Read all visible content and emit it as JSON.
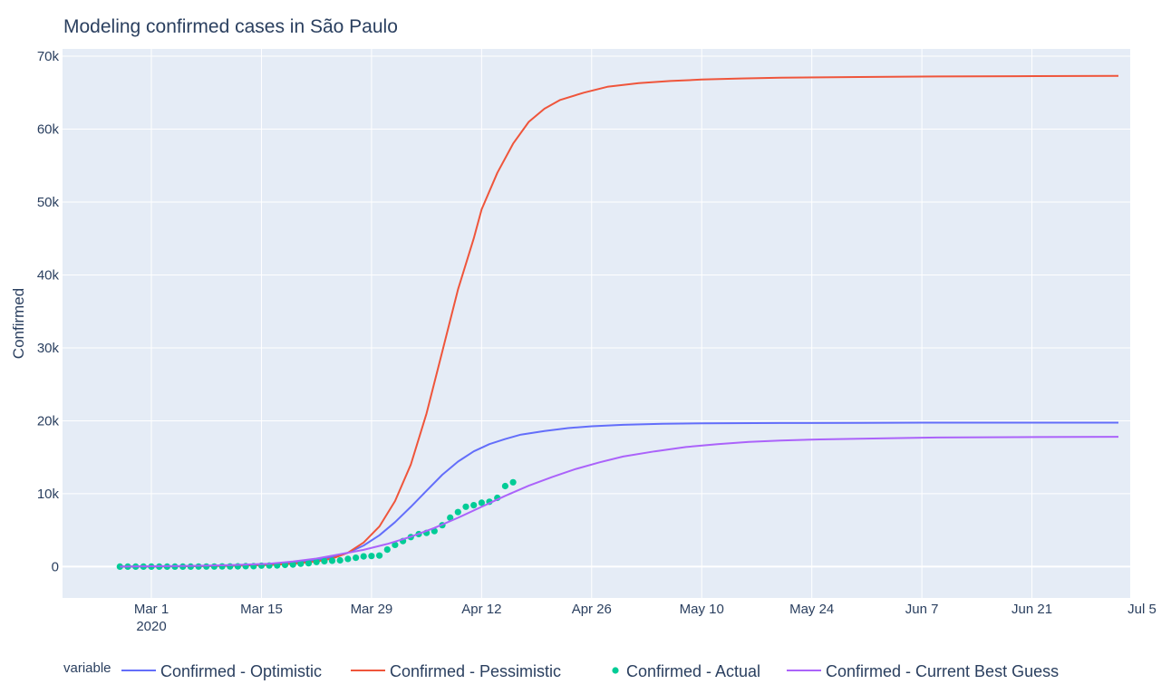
{
  "chart_data": {
    "type": "line",
    "title": "Modeling confirmed cases in São Paulo",
    "xlabel": "",
    "ylabel": "Confirmed",
    "x_start_day": 0,
    "x_end_day": 123,
    "xlim": [
      -11.3,
      124.5
    ],
    "ylim": [
      -4300,
      71000
    ],
    "y_ticks": [
      {
        "value": 0,
        "label": "0"
      },
      {
        "value": 10000,
        "label": "10k"
      },
      {
        "value": 20000,
        "label": "20k"
      },
      {
        "value": 30000,
        "label": "30k"
      },
      {
        "value": 40000,
        "label": "40k"
      },
      {
        "value": 50000,
        "label": "50k"
      },
      {
        "value": 60000,
        "label": "60k"
      },
      {
        "value": 70000,
        "label": "70k"
      }
    ],
    "x_ticks": [
      {
        "day": 0,
        "label": "Mar 1",
        "sublabel": "2020"
      },
      {
        "day": 14,
        "label": "Mar 15"
      },
      {
        "day": 28,
        "label": "Mar 29"
      },
      {
        "day": 42,
        "label": "Apr 12"
      },
      {
        "day": 56,
        "label": "Apr 26"
      },
      {
        "day": 70,
        "label": "May 10"
      },
      {
        "day": 84,
        "label": "May 24"
      },
      {
        "day": 98,
        "label": "Jun 7"
      },
      {
        "day": 112,
        "label": "Jun 21"
      },
      {
        "day": 126,
        "label": "Jul 5"
      }
    ],
    "series": [
      {
        "name": "Confirmed - Optimistic",
        "mode": "line",
        "color": "#636efa",
        "points": [
          [
            -4,
            0
          ],
          [
            0,
            30
          ],
          [
            5,
            60
          ],
          [
            10,
            120
          ],
          [
            15,
            300
          ],
          [
            18,
            550
          ],
          [
            21,
            900
          ],
          [
            23,
            1300
          ],
          [
            25,
            1900
          ],
          [
            27,
            2900
          ],
          [
            29,
            4300
          ],
          [
            31,
            6100
          ],
          [
            33,
            8200
          ],
          [
            35,
            10400
          ],
          [
            37,
            12600
          ],
          [
            39,
            14400
          ],
          [
            41,
            15800
          ],
          [
            43,
            16800
          ],
          [
            45,
            17500
          ],
          [
            47,
            18100
          ],
          [
            50,
            18600
          ],
          [
            53,
            19000
          ],
          [
            56,
            19250
          ],
          [
            60,
            19450
          ],
          [
            65,
            19600
          ],
          [
            70,
            19650
          ],
          [
            80,
            19700
          ],
          [
            90,
            19720
          ],
          [
            100,
            19740
          ],
          [
            110,
            19750
          ],
          [
            123,
            19750
          ]
        ]
      },
      {
        "name": "Confirmed - Pessimistic",
        "mode": "line",
        "color": "#ef553b",
        "points": [
          [
            -4,
            0
          ],
          [
            0,
            20
          ],
          [
            5,
            50
          ],
          [
            10,
            100
          ],
          [
            15,
            220
          ],
          [
            18,
            400
          ],
          [
            21,
            700
          ],
          [
            23,
            1100
          ],
          [
            25,
            1900
          ],
          [
            27,
            3300
          ],
          [
            29,
            5500
          ],
          [
            31,
            9000
          ],
          [
            33,
            14000
          ],
          [
            35,
            21000
          ],
          [
            37,
            29500
          ],
          [
            39,
            38000
          ],
          [
            41,
            45000
          ],
          [
            42,
            49000
          ],
          [
            44,
            54000
          ],
          [
            46,
            58000
          ],
          [
            48,
            61000
          ],
          [
            50,
            62800
          ],
          [
            52,
            64000
          ],
          [
            55,
            65000
          ],
          [
            58,
            65800
          ],
          [
            62,
            66300
          ],
          [
            66,
            66600
          ],
          [
            70,
            66800
          ],
          [
            75,
            66950
          ],
          [
            80,
            67050
          ],
          [
            90,
            67150
          ],
          [
            100,
            67220
          ],
          [
            110,
            67260
          ],
          [
            123,
            67300
          ]
        ]
      },
      {
        "name": "Confirmed - Actual",
        "mode": "markers",
        "color": "#00cc96",
        "points": [
          [
            -4,
            1
          ],
          [
            -3,
            1
          ],
          [
            -2,
            1
          ],
          [
            -1,
            2
          ],
          [
            0,
            2
          ],
          [
            1,
            2
          ],
          [
            2,
            2
          ],
          [
            3,
            2
          ],
          [
            4,
            3
          ],
          [
            5,
            3
          ],
          [
            6,
            6
          ],
          [
            7,
            10
          ],
          [
            8,
            16
          ],
          [
            9,
            19
          ],
          [
            10,
            30
          ],
          [
            11,
            42
          ],
          [
            12,
            56
          ],
          [
            13,
            65
          ],
          [
            14,
            136
          ],
          [
            15,
            152
          ],
          [
            16,
            164
          ],
          [
            17,
            240
          ],
          [
            18,
            286
          ],
          [
            19,
            396
          ],
          [
            20,
            459
          ],
          [
            21,
            631
          ],
          [
            22,
            745
          ],
          [
            23,
            810
          ],
          [
            24,
            862
          ],
          [
            25,
            1052
          ],
          [
            26,
            1223
          ],
          [
            27,
            1406
          ],
          [
            28,
            1451
          ],
          [
            29,
            1517
          ],
          [
            30,
            2339
          ],
          [
            31,
            2981
          ],
          [
            32,
            3506
          ],
          [
            33,
            4048
          ],
          [
            34,
            4466
          ],
          [
            35,
            4620
          ],
          [
            36,
            4866
          ],
          [
            37,
            5682
          ],
          [
            38,
            6708
          ],
          [
            39,
            7480
          ],
          [
            40,
            8216
          ],
          [
            41,
            8419
          ],
          [
            42,
            8755
          ],
          [
            43,
            8895
          ],
          [
            44,
            9428
          ],
          [
            45,
            11043
          ],
          [
            46,
            11568
          ]
        ]
      },
      {
        "name": "Confirmed - Current Best Guess",
        "mode": "line",
        "color": "#ab63fa",
        "points": [
          [
            -4,
            0
          ],
          [
            0,
            50
          ],
          [
            5,
            100
          ],
          [
            10,
            200
          ],
          [
            15,
            400
          ],
          [
            18,
            700
          ],
          [
            21,
            1100
          ],
          [
            24,
            1700
          ],
          [
            27,
            2300
          ],
          [
            30,
            3100
          ],
          [
            33,
            4100
          ],
          [
            36,
            5300
          ],
          [
            39,
            6700
          ],
          [
            42,
            8200
          ],
          [
            45,
            9700
          ],
          [
            48,
            11100
          ],
          [
            51,
            12300
          ],
          [
            54,
            13400
          ],
          [
            57,
            14300
          ],
          [
            60,
            15100
          ],
          [
            64,
            15800
          ],
          [
            68,
            16400
          ],
          [
            72,
            16800
          ],
          [
            76,
            17100
          ],
          [
            80,
            17300
          ],
          [
            85,
            17450
          ],
          [
            90,
            17550
          ],
          [
            100,
            17700
          ],
          [
            110,
            17750
          ],
          [
            123,
            17800
          ]
        ]
      }
    ],
    "legend": {
      "title": "variable",
      "position": "bottom",
      "entries": [
        "Confirmed - Optimistic",
        "Confirmed - Pessimistic",
        "Confirmed - Actual",
        "Confirmed - Current Best Guess"
      ]
    }
  }
}
